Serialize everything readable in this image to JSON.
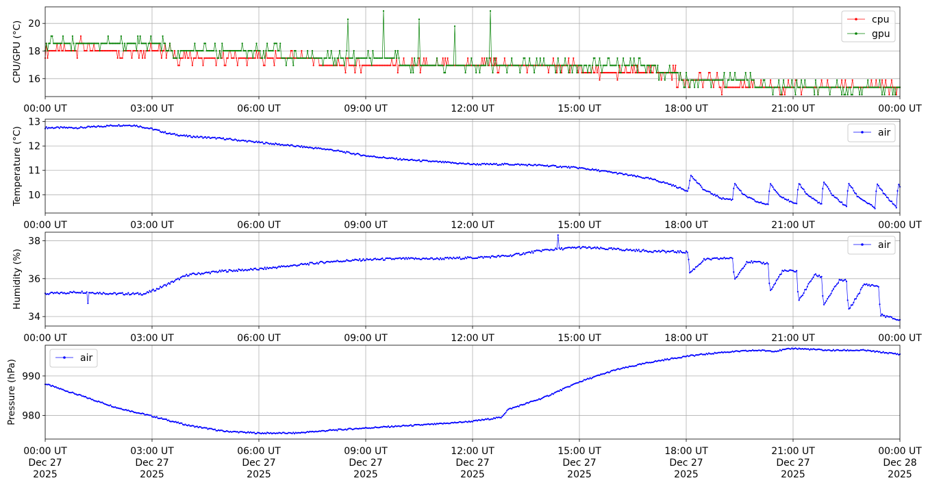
{
  "chart_data": [
    {
      "type": "line",
      "ylabel": "CPU/GPU (°C)",
      "ylim": [
        14.7,
        21.2
      ],
      "yticks": [
        16,
        18,
        20
      ],
      "x_tick_labels": [
        "00:00 UT",
        "03:00 UT",
        "06:00 UT",
        "09:00 UT",
        "12:00 UT",
        "15:00 UT",
        "18:00 UT",
        "21:00 UT",
        "00:00 UT"
      ],
      "x_tick_hours": [
        0,
        3,
        6,
        9,
        12,
        15,
        18,
        21,
        24
      ],
      "grid": true,
      "legend": "top-right",
      "series": [
        {
          "name": "cpu",
          "color": "#ff0000",
          "x_hours": [
            0,
            0.5,
            1,
            1.5,
            2,
            2.5,
            3,
            3.5,
            3.6,
            4,
            5,
            6,
            6.5,
            7,
            7.5,
            8,
            8.4,
            8.6,
            9,
            9.5,
            10,
            10.5,
            11,
            11.5,
            12,
            12.5,
            13,
            14,
            15,
            16,
            17,
            17.5,
            18,
            18.5,
            19,
            19.5,
            20,
            20.5,
            21,
            21.5,
            22,
            22.5,
            23,
            23.5,
            24
          ],
          "values": [
            18.2,
            18.2,
            18.3,
            18.2,
            18.2,
            18.2,
            18.2,
            18.1,
            17.6,
            17.6,
            17.6,
            17.6,
            17.5,
            17.4,
            17.3,
            17.1,
            17.1,
            17.1,
            17.1,
            17.0,
            17.0,
            17.0,
            16.9,
            16.8,
            16.7,
            16.7,
            16.8,
            16.8,
            16.7,
            16.6,
            16.5,
            16.3,
            16.0,
            15.8,
            15.6,
            15.5,
            15.4,
            15.4,
            15.3,
            15.3,
            15.3,
            15.3,
            15.2,
            15.2,
            15.2
          ]
        },
        {
          "name": "gpu",
          "color": "#008000",
          "x_hours": [
            0,
            0.5,
            1,
            1.5,
            2,
            2.5,
            3,
            3.5,
            3.6,
            4,
            5,
            6,
            6.5,
            7,
            7.5,
            8,
            8.4,
            8.6,
            9,
            9.5,
            10,
            10.5,
            11,
            11.5,
            12,
            12.5,
            13,
            14,
            15,
            16,
            17,
            17.5,
            18,
            18.5,
            19,
            19.5,
            20,
            20.5,
            21,
            21.5,
            22,
            22.5,
            23,
            23.5,
            24
          ],
          "values": [
            18.7,
            18.7,
            18.7,
            18.7,
            18.7,
            18.6,
            18.6,
            18.2,
            17.7,
            17.8,
            18.0,
            18.0,
            17.8,
            17.6,
            17.6,
            17.6,
            17.6,
            17.6,
            17.6,
            17.4,
            17.2,
            17.1,
            17.1,
            17.1,
            17.0,
            17.0,
            17.1,
            17.1,
            17.1,
            17.0,
            16.8,
            16.5,
            16.0,
            16.0,
            15.9,
            15.8,
            15.6,
            15.6,
            15.6,
            15.5,
            15.4,
            15.4,
            15.4,
            15.4,
            15.4
          ]
        }
      ],
      "spikes": [
        {
          "x_hours": 8.5,
          "value": 20.3
        },
        {
          "x_hours": 9.5,
          "value": 20.9
        },
        {
          "x_hours": 10.5,
          "value": 20.3
        },
        {
          "x_hours": 11.5,
          "value": 19.8
        },
        {
          "x_hours": 12.5,
          "value": 20.9
        }
      ]
    },
    {
      "type": "line",
      "ylabel": "Temperature (°C)",
      "ylim": [
        9.25,
        13.1
      ],
      "yticks": [
        10,
        11,
        12,
        13
      ],
      "x_tick_labels": [
        "00:00 UT",
        "03:00 UT",
        "06:00 UT",
        "09:00 UT",
        "12:00 UT",
        "15:00 UT",
        "18:00 UT",
        "21:00 UT",
        "00:00 UT"
      ],
      "x_tick_hours": [
        0,
        3,
        6,
        9,
        12,
        15,
        18,
        21,
        24
      ],
      "grid": true,
      "legend": "top-right",
      "series": [
        {
          "name": "air",
          "color": "#0000ff",
          "x_hours": [
            0,
            1,
            2,
            2.5,
            3,
            3.5,
            4,
            5,
            6,
            7,
            8,
            9,
            10,
            11,
            12,
            13,
            14,
            15,
            16,
            17,
            17.5,
            18.05,
            18.12,
            18.5,
            19,
            19.3,
            19.35,
            19.6,
            20,
            20.3,
            20.35,
            20.6,
            21,
            21.1,
            21.15,
            21.4,
            21.8,
            21.85,
            22.1,
            22.5,
            22.55,
            22.8,
            23.3,
            23.35,
            23.6,
            23.9,
            23.95,
            24
          ],
          "values": [
            12.75,
            12.75,
            12.85,
            12.85,
            12.7,
            12.5,
            12.4,
            12.3,
            12.15,
            12.0,
            11.85,
            11.6,
            11.45,
            11.35,
            11.25,
            11.25,
            11.2,
            11.1,
            10.9,
            10.65,
            10.45,
            10.15,
            10.8,
            10.2,
            9.85,
            9.8,
            10.5,
            10.0,
            9.7,
            9.6,
            10.45,
            10.0,
            9.65,
            9.6,
            10.5,
            10.0,
            9.6,
            10.55,
            10.0,
            9.5,
            10.5,
            9.95,
            9.45,
            10.45,
            9.95,
            9.5,
            10.45,
            10.3
          ]
        }
      ]
    },
    {
      "type": "line",
      "ylabel": "Humidity (%)",
      "ylim": [
        33.5,
        38.45
      ],
      "yticks": [
        34,
        36,
        38
      ],
      "x_tick_labels": [
        "00:00 UT",
        "03:00 UT",
        "06:00 UT",
        "09:00 UT",
        "12:00 UT",
        "15:00 UT",
        "18:00 UT",
        "21:00 UT",
        "00:00 UT"
      ],
      "x_tick_hours": [
        0,
        3,
        6,
        9,
        12,
        15,
        18,
        21,
        24
      ],
      "grid": true,
      "legend": "top-right",
      "series": [
        {
          "name": "air",
          "color": "#0000ff",
          "x_hours": [
            0,
            1,
            2,
            2.8,
            3.2,
            4,
            5,
            6,
            7,
            8,
            9,
            10,
            11,
            12,
            13,
            14,
            15,
            16,
            17,
            18.05,
            18.1,
            18.5,
            19.3,
            19.35,
            19.7,
            20.3,
            20.35,
            20.7,
            21.1,
            21.15,
            21.6,
            21.8,
            21.85,
            22.3,
            22.5,
            22.55,
            23.0,
            23.4,
            23.45,
            24
          ],
          "values": [
            35.2,
            35.3,
            35.2,
            35.2,
            35.5,
            36.2,
            36.4,
            36.5,
            36.7,
            36.9,
            37.0,
            37.05,
            37.05,
            37.1,
            37.2,
            37.5,
            37.65,
            37.55,
            37.45,
            37.4,
            36.3,
            37.0,
            37.1,
            35.9,
            36.9,
            36.8,
            35.3,
            36.4,
            36.4,
            34.8,
            36.2,
            36.1,
            34.6,
            35.9,
            35.9,
            34.3,
            35.7,
            35.6,
            34.1,
            33.8
          ]
        }
      ],
      "spikes": [
        {
          "x_hours": 1.2,
          "value": 34.7
        },
        {
          "x_hours": 14.4,
          "value": 38.3
        }
      ]
    },
    {
      "type": "line",
      "ylabel": "Pressure (hPa)",
      "ylim": [
        974,
        997.8
      ],
      "yticks": [
        980,
        990
      ],
      "x_tick_labels": [
        "00:00 UT\nDec 27\n2025",
        "03:00 UT\nDec 27\n2025",
        "06:00 UT\nDec 27\n2025",
        "09:00 UT\nDec 27\n2025",
        "12:00 UT\nDec 27\n2025",
        "15:00 UT\nDec 27\n2025",
        "18:00 UT\nDec 27\n2025",
        "21:00 UT\nDec 27\n2025",
        "00:00 UT\nDec 28\n2025"
      ],
      "x_tick_hours": [
        0,
        3,
        6,
        9,
        12,
        15,
        18,
        21,
        24
      ],
      "grid": true,
      "legend": "top-left",
      "series": [
        {
          "name": "air",
          "color": "#0000ff",
          "x_hours": [
            0,
            1,
            2,
            3,
            4,
            5,
            6,
            7,
            8,
            9,
            10,
            11,
            12,
            12.8,
            13,
            14,
            15,
            16,
            17,
            18,
            19,
            20,
            20.5,
            21,
            22,
            23,
            24
          ],
          "values": [
            988,
            985,
            982,
            979.8,
            977.5,
            976,
            975.5,
            975.5,
            976.2,
            976.8,
            977.3,
            977.8,
            978.5,
            979.5,
            981.5,
            984.5,
            988.5,
            991.5,
            993.5,
            995,
            996,
            996.5,
            996.3,
            997,
            996.5,
            996.5,
            995.5
          ]
        }
      ]
    }
  ]
}
